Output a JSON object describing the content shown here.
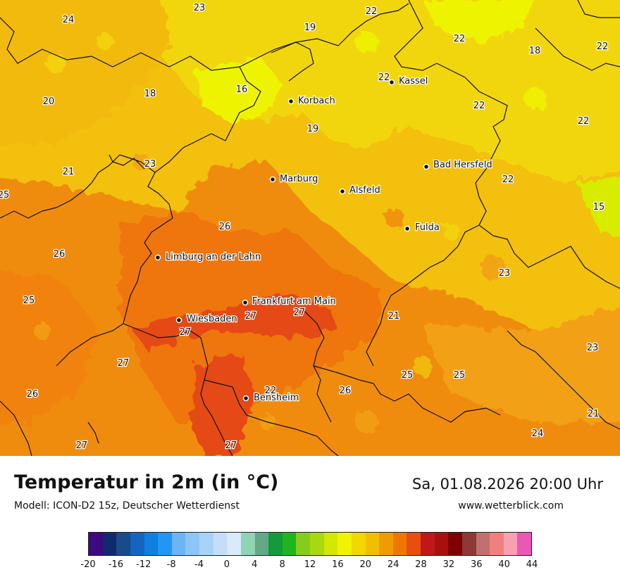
{
  "title": "Temperatur in 2m (in °C)",
  "model": "Modell: ICON-D2 15z, Deutscher Wetterdienst",
  "datetime": "Sa, 01.08.2026 20:00 Uhr",
  "website": "www.wetterblick.com",
  "cities": [
    {
      "name": "Kassel"
    },
    {
      "name": "Korbach"
    },
    {
      "name": "Bad Hersfeld"
    },
    {
      "name": "Marburg"
    },
    {
      "name": "Alsfeld"
    },
    {
      "name": "Fulda"
    },
    {
      "name": "Limburg an der Lahn"
    },
    {
      "name": "Frankfurt am Main"
    },
    {
      "name": "Wiesbaden"
    },
    {
      "name": "Bensheim"
    }
  ],
  "temperature_values": [
    "23",
    "24",
    "19",
    "22",
    "22",
    "18",
    "22",
    "22",
    "16",
    "20",
    "18",
    "19",
    "22",
    "22",
    "23",
    "21",
    "22",
    "25",
    "26",
    "15",
    "26",
    "25",
    "23",
    "27",
    "27",
    "21",
    "27",
    "23",
    "25",
    "25",
    "26",
    "26",
    "22",
    "21",
    "24",
    "27",
    "27"
  ],
  "legend": {
    "colors": [
      "#3a0a7e",
      "#102a6c",
      "#184b8a",
      "#1565c0",
      "#0d80e0",
      "#2196f3",
      "#6cb4f5",
      "#8cc6f8",
      "#a8d3f8",
      "#c4def8",
      "#d9eafa",
      "#8fd4b4",
      "#64a888",
      "#149a3c",
      "#20b420",
      "#86cc1c",
      "#a8d810",
      "#d2e800",
      "#f0f400",
      "#f0d800",
      "#f0c000",
      "#f09c00",
      "#f07800",
      "#e84e10",
      "#c01818",
      "#a81010",
      "#7e0000",
      "#8e3838",
      "#c07070",
      "#f08080",
      "#f8a0b0",
      "#e858b4"
    ],
    "labels": [
      "-20",
      "-16",
      "-12",
      "-8",
      "-4",
      "0",
      "4",
      "8",
      "12",
      "16",
      "20",
      "24",
      "28",
      "32",
      "36",
      "40",
      "44"
    ]
  }
}
